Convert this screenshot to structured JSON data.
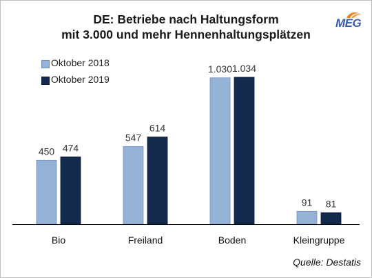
{
  "chart_data": {
    "type": "bar",
    "title": "DE: Betriebe nach Haltungsform",
    "subtitle": "mit 3.000 und mehr Hennenhaltungsplätzen",
    "categories": [
      "Bio",
      "Freiland",
      "Boden",
      "Kleingruppe"
    ],
    "series": [
      {
        "name": "Oktober 2018",
        "color": "#95b3d7",
        "values": [
          450,
          547,
          1030,
          91
        ],
        "labels": [
          "450",
          "547",
          "1.030",
          "91"
        ]
      },
      {
        "name": "Oktober 2019",
        "color": "#132a4c",
        "values": [
          474,
          614,
          1034,
          81
        ],
        "labels": [
          "474",
          "614",
          "1.034",
          "81"
        ]
      }
    ],
    "ylim": [
      0,
      1034
    ],
    "grid": false,
    "legend_position": "top-left",
    "source": "Quelle: Destatis"
  },
  "logo": {
    "text": "MEG",
    "accent": "#f07c1e",
    "color": "#3a5ba8"
  }
}
